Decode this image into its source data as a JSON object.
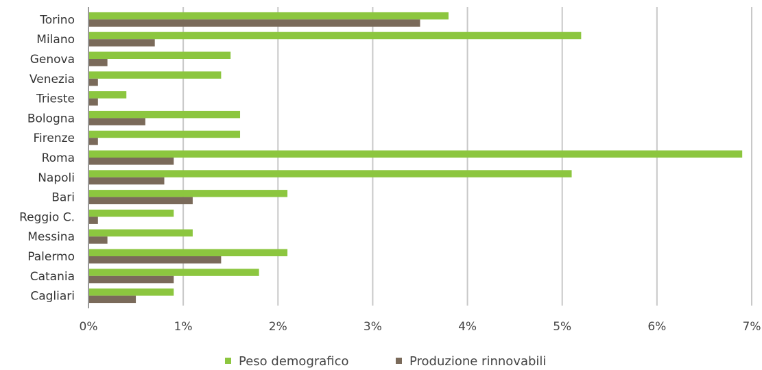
{
  "chart_data": {
    "type": "bar",
    "orientation": "horizontal",
    "categories": [
      "Torino",
      "Milano",
      "Genova",
      "Venezia",
      "Trieste",
      "Bologna",
      "Firenze",
      "Roma",
      "Napoli",
      "Bari",
      "Reggio C.",
      "Messina",
      "Palermo",
      "Catania",
      "Cagliari"
    ],
    "series": [
      {
        "name": "Peso demografico",
        "color": "#8CC63F",
        "values": [
          3.8,
          5.2,
          1.5,
          1.4,
          0.4,
          1.6,
          1.6,
          6.9,
          5.1,
          2.1,
          0.9,
          1.1,
          2.1,
          1.8,
          0.9
        ]
      },
      {
        "name": "Produzione rinnovabili",
        "color": "#7A6A5A",
        "values": [
          3.5,
          0.7,
          0.2,
          0.1,
          0.1,
          0.6,
          0.1,
          0.9,
          0.8,
          1.1,
          0.1,
          0.2,
          1.4,
          0.9,
          0.5
        ]
      }
    ],
    "xlim": [
      0,
      7
    ],
    "x_ticks": [
      0,
      1,
      2,
      3,
      4,
      5,
      6,
      7
    ],
    "x_tick_labels": [
      "0%",
      "1%",
      "2%",
      "3%",
      "4%",
      "5%",
      "6%",
      "7%"
    ],
    "grid": true,
    "legend_position": "bottom"
  }
}
